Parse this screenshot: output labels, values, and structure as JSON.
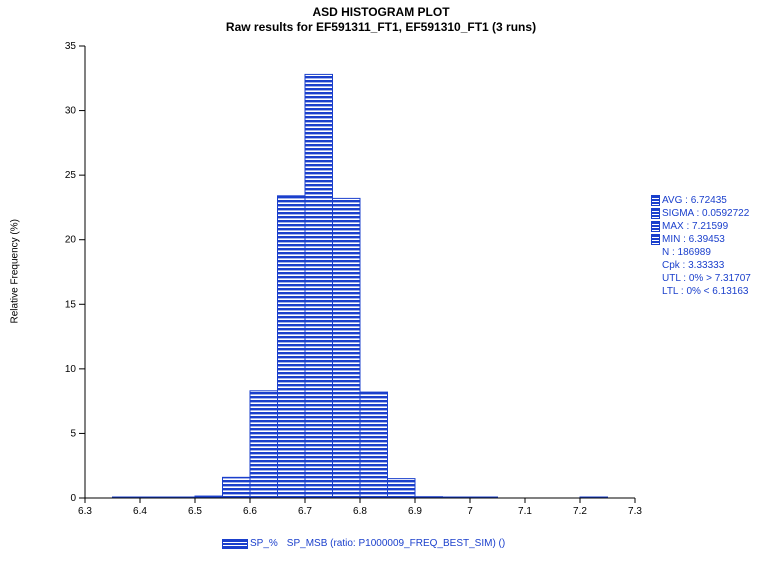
{
  "chart_data": {
    "type": "bar",
    "title": "ASD HISTOGRAM PLOT",
    "subtitle": "Raw results for EF591311_FT1, EF591310_FT1 (3 runs)",
    "ylabel": "Relative Frequency (%)",
    "xlabel": "",
    "xlim": [
      6.3,
      7.3
    ],
    "ylim": [
      0,
      35
    ],
    "xticks": [
      "6.3",
      "6.4",
      "6.5",
      "6.6",
      "6.7",
      "6.8",
      "6.9",
      "7",
      "7.1",
      "7.2",
      "7.3"
    ],
    "yticks": [
      "0",
      "5",
      "10",
      "15",
      "20",
      "25",
      "30",
      "35"
    ],
    "bin_width": 0.05,
    "bins": [
      {
        "start": 6.35,
        "value": 0.05
      },
      {
        "start": 6.4,
        "value": 0.05
      },
      {
        "start": 6.45,
        "value": 0.05
      },
      {
        "start": 6.5,
        "value": 0.15
      },
      {
        "start": 6.55,
        "value": 1.6
      },
      {
        "start": 6.6,
        "value": 8.3
      },
      {
        "start": 6.65,
        "value": 23.4
      },
      {
        "start": 6.7,
        "value": 32.8
      },
      {
        "start": 6.75,
        "value": 23.2
      },
      {
        "start": 6.8,
        "value": 8.2
      },
      {
        "start": 6.85,
        "value": 1.5
      },
      {
        "start": 6.9,
        "value": 0.1
      },
      {
        "start": 6.95,
        "value": 0.05
      },
      {
        "start": 7.0,
        "value": 0.05
      },
      {
        "start": 7.05,
        "value": 0.0
      },
      {
        "start": 7.1,
        "value": 0.0
      },
      {
        "start": 7.15,
        "value": 0.0
      },
      {
        "start": 7.2,
        "value": 0.05
      }
    ],
    "series": [
      {
        "name": "SP_%"
      }
    ],
    "bar_color": "#1a3fcc",
    "grid": false
  },
  "stats": [
    {
      "text": "AVG : 6.72435",
      "swatch": true
    },
    {
      "text": "SIGMA : 0.0592722",
      "swatch": true
    },
    {
      "text": "MAX : 7.21599",
      "swatch": true
    },
    {
      "text": "MIN : 6.39453",
      "swatch": true
    },
    {
      "text": "N : 186989",
      "swatch": false
    },
    {
      "text": "Cpk : 3.33333",
      "swatch": false
    },
    {
      "text": "UTL : 0% > 7.31707",
      "swatch": false
    },
    {
      "text": "LTL : 0% < 6.13163",
      "swatch": false
    }
  ],
  "legend": {
    "series_label": "SP_%",
    "description": "SP_MSB (ratio: P1000009_FREQ_BEST_SIM) ()"
  }
}
